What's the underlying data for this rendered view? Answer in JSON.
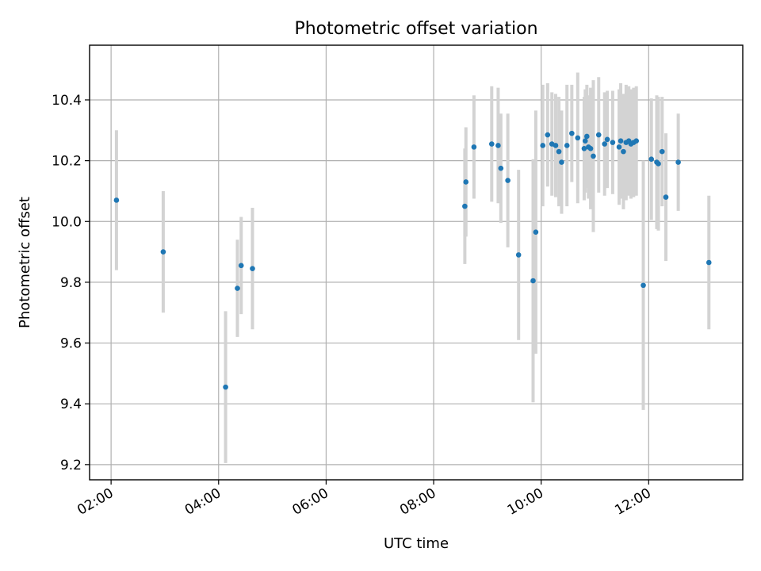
{
  "chart_data": {
    "type": "scatter",
    "title": "Photometric offset variation",
    "xlabel": "UTC time",
    "ylabel": "Photometric offset",
    "xlim": [
      1.6,
      13.75
    ],
    "ylim": [
      9.15,
      10.58
    ],
    "grid": true,
    "x_ticks": [
      {
        "value": 2,
        "label": "02:00"
      },
      {
        "value": 4,
        "label": "04:00"
      },
      {
        "value": 6,
        "label": "06:00"
      },
      {
        "value": 8,
        "label": "08:00"
      },
      {
        "value": 10,
        "label": "10:00"
      },
      {
        "value": 12,
        "label": "12:00"
      }
    ],
    "y_ticks": [
      {
        "value": 9.2,
        "label": "9.2"
      },
      {
        "value": 9.4,
        "label": "9.4"
      },
      {
        "value": 9.6,
        "label": "9.6"
      },
      {
        "value": 9.8,
        "label": "9.8"
      },
      {
        "value": 10.0,
        "label": "10.0"
      },
      {
        "value": 10.2,
        "label": "10.2"
      },
      {
        "value": 10.4,
        "label": "10.4"
      }
    ],
    "point_color": "#1f77b4",
    "errorbar_color": "#d3d3d3",
    "series": [
      {
        "name": "offset",
        "x": [
          2.1,
          2.97,
          4.13,
          4.35,
          4.42,
          4.63,
          8.58,
          8.6,
          8.75,
          9.08,
          9.2,
          9.25,
          9.38,
          9.58,
          9.85,
          9.9,
          10.03,
          10.12,
          10.2,
          10.27,
          10.33,
          10.38,
          10.48,
          10.57,
          10.68,
          10.8,
          10.82,
          10.85,
          10.88,
          10.92,
          10.97,
          11.07,
          11.18,
          11.23,
          11.33,
          11.45,
          11.48,
          11.53,
          11.58,
          11.63,
          11.67,
          11.72,
          11.77,
          11.9,
          12.05,
          12.15,
          12.18,
          12.25,
          12.32,
          12.55,
          13.12
        ],
        "y": [
          10.07,
          9.9,
          9.455,
          9.78,
          9.855,
          9.845,
          10.05,
          10.13,
          10.245,
          10.255,
          10.25,
          10.175,
          10.135,
          9.89,
          9.805,
          9.965,
          10.25,
          10.285,
          10.255,
          10.25,
          10.23,
          10.195,
          10.25,
          10.29,
          10.275,
          10.24,
          10.265,
          10.28,
          10.245,
          10.24,
          10.215,
          10.285,
          10.255,
          10.27,
          10.26,
          10.245,
          10.265,
          10.23,
          10.26,
          10.265,
          10.255,
          10.26,
          10.265,
          9.79,
          10.205,
          10.195,
          10.19,
          10.23,
          10.08,
          10.195,
          9.865
        ],
        "err": [
          0.23,
          0.2,
          0.25,
          0.16,
          0.16,
          0.2,
          0.19,
          0.18,
          0.17,
          0.19,
          0.19,
          0.18,
          0.22,
          0.28,
          0.4,
          0.4,
          0.2,
          0.17,
          0.17,
          0.17,
          0.18,
          0.17,
          0.2,
          0.16,
          0.215,
          0.17,
          0.17,
          0.17,
          0.17,
          0.2,
          0.25,
          0.19,
          0.17,
          0.16,
          0.17,
          0.19,
          0.19,
          0.19,
          0.19,
          0.18,
          0.18,
          0.18,
          0.18,
          0.41,
          0.2,
          0.22,
          0.22,
          0.18,
          0.21,
          0.16,
          0.22
        ]
      }
    ]
  }
}
